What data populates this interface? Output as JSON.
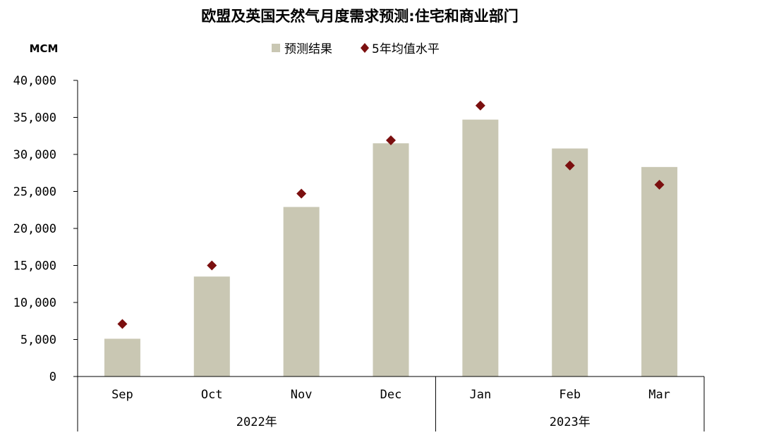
{
  "chart_data": {
    "type": "bar",
    "title": "欧盟及英国天然气月度需求预测:住宅和商业部门",
    "ylabel": "MCM",
    "xlabel": "",
    "ylim": [
      0,
      40000
    ],
    "yticks": [
      0,
      5000,
      10000,
      15000,
      20000,
      25000,
      30000,
      35000,
      40000
    ],
    "ytick_labels": [
      "0",
      "5,000",
      "10,000",
      "15,000",
      "20,000",
      "25,000",
      "30,000",
      "35,000",
      "40,000"
    ],
    "categories": [
      "Sep",
      "Oct",
      "Nov",
      "Dec",
      "Jan",
      "Feb",
      "Mar"
    ],
    "category_groups": [
      {
        "label": "2022年",
        "categories": [
          "Sep",
          "Oct",
          "Nov",
          "Dec"
        ]
      },
      {
        "label": "2023年",
        "categories": [
          "Jan",
          "Feb",
          "Mar"
        ]
      }
    ],
    "series": [
      {
        "name": "预测结果",
        "type": "bar",
        "color": "#c9c7b3",
        "values": [
          5100,
          13500,
          22900,
          31500,
          34700,
          30800,
          28300
        ]
      },
      {
        "name": "5年均值水平",
        "type": "scatter",
        "marker": "diamond",
        "color": "#7b0f0f",
        "values": [
          7100,
          15000,
          24700,
          31900,
          36600,
          28500,
          25900
        ]
      }
    ],
    "legend_position": "top-center",
    "grid": false
  }
}
